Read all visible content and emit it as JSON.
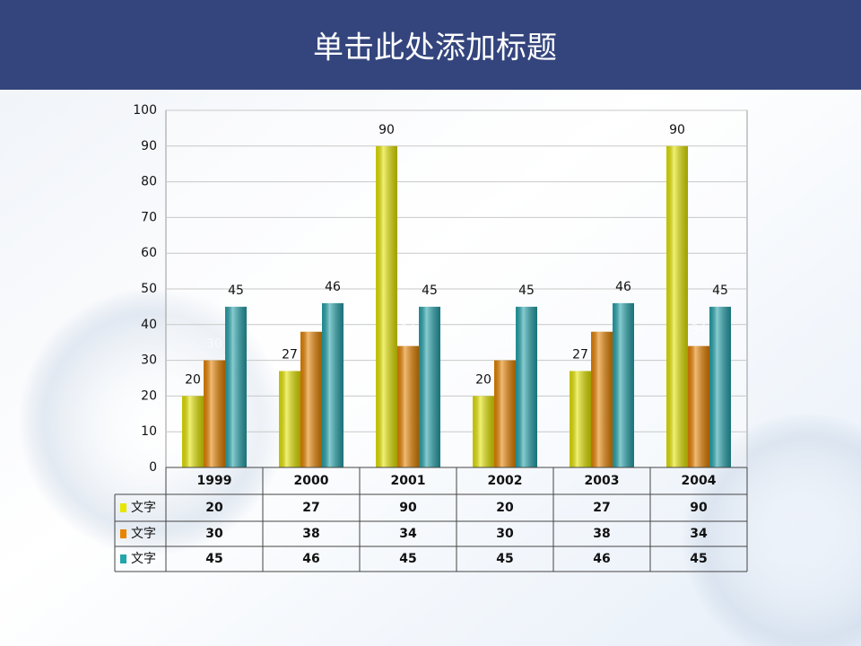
{
  "chart_data": {
    "type": "bar",
    "title": "单击此处添加标题",
    "categories": [
      "1999",
      "2000",
      "2001",
      "2002",
      "2003",
      "2004"
    ],
    "series": [
      {
        "name": "文字",
        "color": "#e6e600",
        "values": [
          20,
          27,
          90,
          20,
          27,
          90
        ]
      },
      {
        "name": "文字",
        "color": "#e88400",
        "values": [
          30,
          38,
          34,
          30,
          38,
          34
        ]
      },
      {
        "name": "文字",
        "color": "#24a4ac",
        "values": [
          45,
          46,
          45,
          45,
          46,
          45
        ]
      }
    ],
    "ylim": [
      0,
      100
    ],
    "yticks": [
      0,
      10,
      20,
      30,
      40,
      50,
      60,
      70,
      80,
      90,
      100
    ],
    "grid": true
  }
}
